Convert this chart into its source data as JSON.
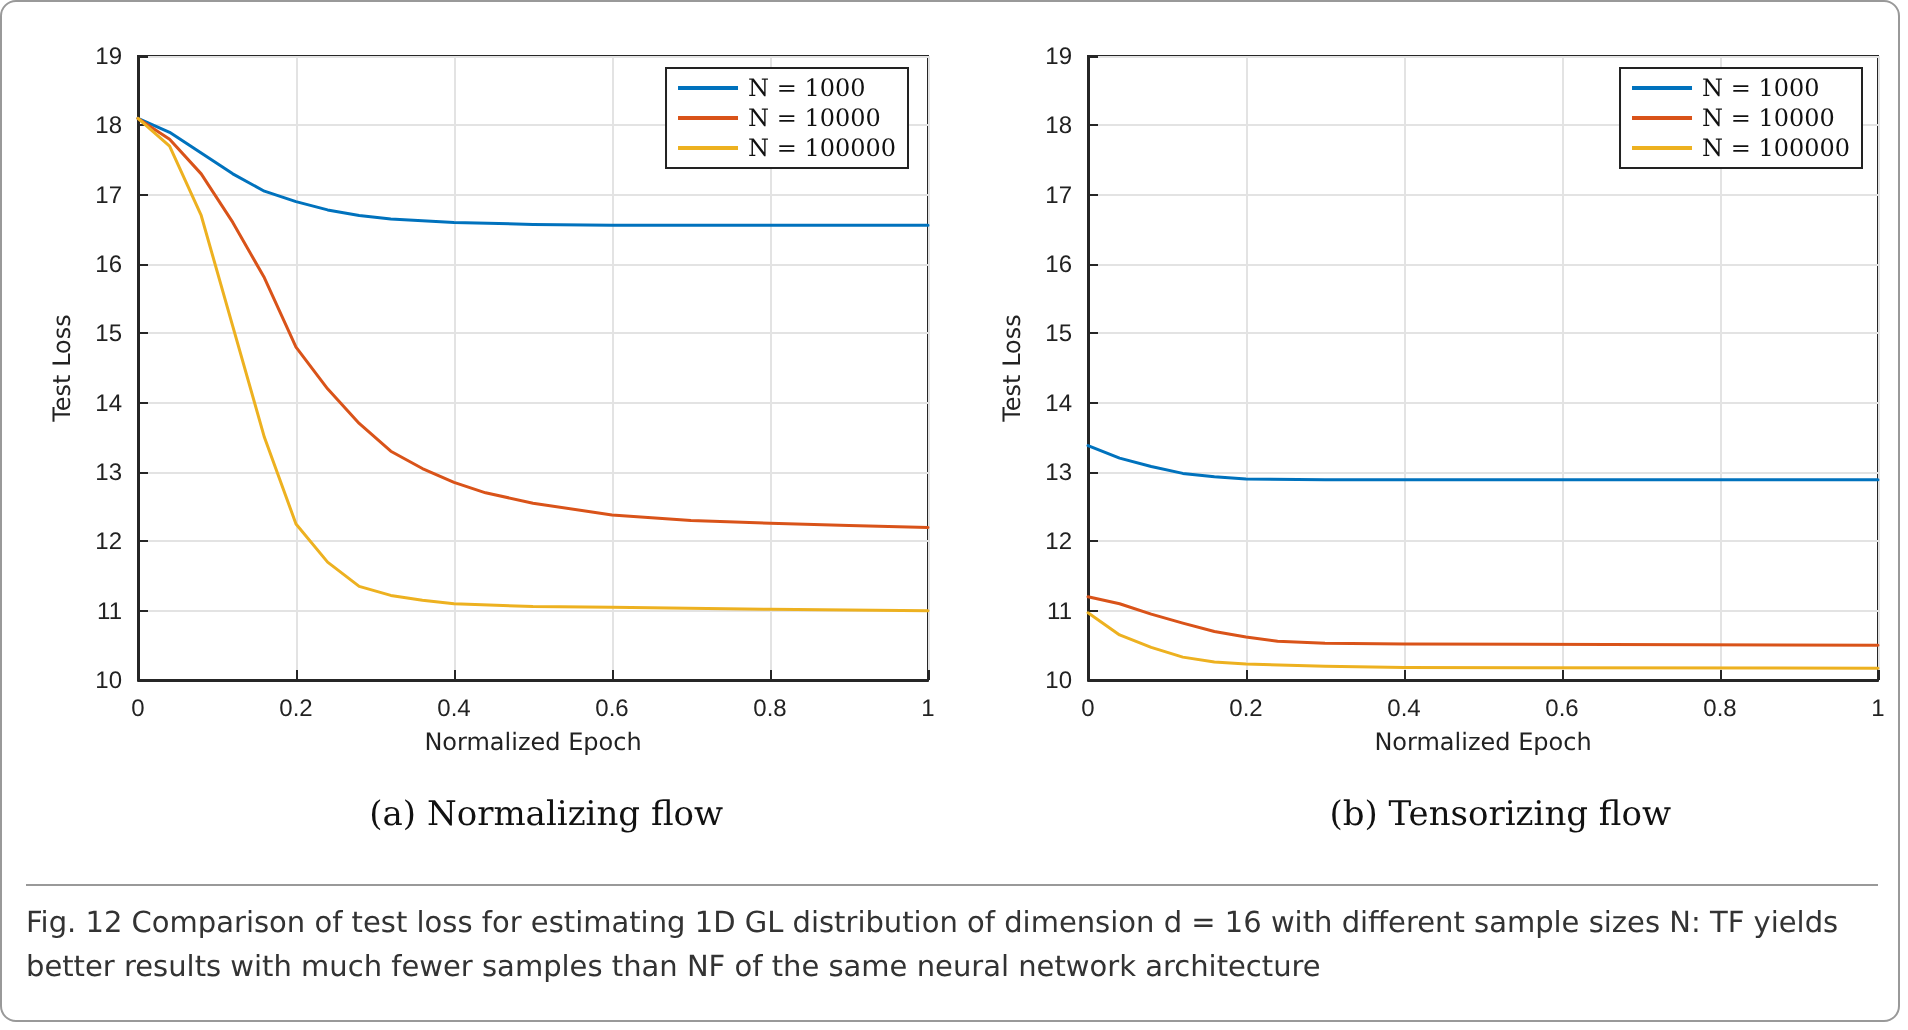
{
  "chart_data": [
    {
      "type": "line",
      "title": "(a) Normalizing flow",
      "xlabel": "Normalized Epoch",
      "ylabel": "Test Loss",
      "xlim": [
        0,
        1
      ],
      "xticks": [
        0,
        0.2,
        0.4,
        0.6,
        0.8,
        1
      ],
      "ylim": [
        10,
        19
      ],
      "yticks": [
        10,
        11,
        12,
        13,
        14,
        15,
        16,
        17,
        18,
        19
      ],
      "grid": true,
      "legend": "top right",
      "line_style": "solid",
      "marker": "none",
      "series": [
        {
          "name": "N = 1000",
          "color": "#0072bd",
          "x": [
            0,
            0.04,
            0.08,
            0.12,
            0.16,
            0.2,
            0.24,
            0.28,
            0.32,
            0.4,
            0.5,
            0.6,
            1
          ],
          "values": [
            18.1,
            17.9,
            17.6,
            17.3,
            17.05,
            16.9,
            16.78,
            16.7,
            16.65,
            16.6,
            16.57,
            16.56,
            16.56
          ]
        },
        {
          "name": "N = 10000",
          "color": "#d95319",
          "x": [
            0,
            0.04,
            0.08,
            0.12,
            0.16,
            0.2,
            0.24,
            0.28,
            0.32,
            0.36,
            0.4,
            0.44,
            0.5,
            0.6,
            0.7,
            0.8,
            0.9,
            1
          ],
          "values": [
            18.1,
            17.8,
            17.3,
            16.6,
            15.8,
            14.8,
            14.2,
            13.7,
            13.3,
            13.05,
            12.85,
            12.7,
            12.55,
            12.38,
            12.3,
            12.26,
            12.23,
            12.2
          ]
        },
        {
          "name": "N = 100000",
          "color": "#edb120",
          "x": [
            0,
            0.04,
            0.08,
            0.12,
            0.16,
            0.2,
            0.24,
            0.28,
            0.32,
            0.36,
            0.4,
            0.5,
            0.6,
            0.8,
            1
          ],
          "values": [
            18.1,
            17.7,
            16.7,
            15.1,
            13.5,
            12.25,
            11.7,
            11.35,
            11.22,
            11.15,
            11.1,
            11.06,
            11.05,
            11.02,
            11.0
          ]
        }
      ],
      "annotations": [
        "Fig. 12  Comparison of test loss for estimating 1D GL distribution of dimension d = 16 with different sample sizes N: TF yields better results with much fewer samples than NF of the same neural network architecture"
      ]
    },
    {
      "type": "line",
      "title": "(b) Tensorizing flow",
      "xlabel": "Normalized Epoch",
      "ylabel": "Test Loss",
      "xlim": [
        0,
        1
      ],
      "xticks": [
        0,
        0.2,
        0.4,
        0.6,
        0.8,
        1
      ],
      "ylim": [
        10,
        19
      ],
      "yticks": [
        10,
        11,
        12,
        13,
        14,
        15,
        16,
        17,
        18,
        19
      ],
      "grid": true,
      "legend": "top right",
      "line_style": "solid",
      "marker": "none",
      "series": [
        {
          "name": "N = 1000",
          "color": "#0072bd",
          "x": [
            0,
            0.04,
            0.08,
            0.12,
            0.16,
            0.2,
            0.3,
            1
          ],
          "values": [
            13.38,
            13.2,
            13.08,
            12.98,
            12.93,
            12.9,
            12.89,
            12.89
          ]
        },
        {
          "name": "N = 10000",
          "color": "#d95319",
          "x": [
            0,
            0.04,
            0.08,
            0.12,
            0.16,
            0.2,
            0.24,
            0.3,
            0.4,
            1
          ],
          "values": [
            11.2,
            11.1,
            10.95,
            10.82,
            10.7,
            10.62,
            10.56,
            10.53,
            10.52,
            10.5
          ]
        },
        {
          "name": "N = 100000",
          "color": "#edb120",
          "x": [
            0,
            0.04,
            0.08,
            0.12,
            0.16,
            0.2,
            0.3,
            0.4,
            1
          ],
          "values": [
            10.97,
            10.65,
            10.47,
            10.33,
            10.26,
            10.23,
            10.2,
            10.18,
            10.17
          ]
        }
      ]
    }
  ]
}
